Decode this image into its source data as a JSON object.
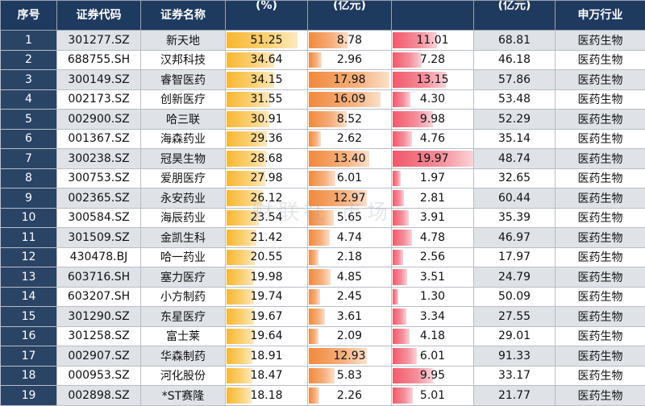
{
  "columns": [
    {
      "key": "seq",
      "label": "序号"
    },
    {
      "key": "code",
      "label": "证券代码"
    },
    {
      "key": "name",
      "label": "证券名称"
    },
    {
      "key": "pct",
      "label": "(%)"
    },
    {
      "key": "amount",
      "label": "(亿元)"
    },
    {
      "key": "amp",
      "label": ""
    },
    {
      "key": "cap",
      "label": "(亿元)"
    },
    {
      "key": "industry",
      "label": "申万行业"
    }
  ],
  "bar_colors": {
    "pct": "#f7b733",
    "amount": "#f08a3c",
    "amp": "#ef5a6b"
  },
  "bar_max": {
    "pct": 51.25,
    "amount": 17.98,
    "amp": 19.97
  },
  "watermark": "财联社 市场",
  "rows": [
    {
      "seq": "1",
      "code": "301277.SZ",
      "name": "新天地",
      "pct": "51.25",
      "amount": "8.78",
      "amp": "11.01",
      "cap": "68.81",
      "industry": "医药生物"
    },
    {
      "seq": "2",
      "code": "688755.SH",
      "name": "汉邦科技",
      "pct": "34.64",
      "amount": "2.96",
      "amp": "7.28",
      "cap": "46.18",
      "industry": "医药生物"
    },
    {
      "seq": "3",
      "code": "300149.SZ",
      "name": "睿智医药",
      "pct": "34.15",
      "amount": "17.98",
      "amp": "13.15",
      "cap": "57.86",
      "industry": "医药生物"
    },
    {
      "seq": "4",
      "code": "002173.SZ",
      "name": "创新医疗",
      "pct": "31.55",
      "amount": "16.09",
      "amp": "4.30",
      "cap": "53.48",
      "industry": "医药生物"
    },
    {
      "seq": "5",
      "code": "002900.SZ",
      "name": "哈三联",
      "pct": "30.91",
      "amount": "8.52",
      "amp": "9.98",
      "cap": "52.29",
      "industry": "医药生物"
    },
    {
      "seq": "6",
      "code": "001367.SZ",
      "name": "海森药业",
      "pct": "29.36",
      "amount": "2.62",
      "amp": "4.76",
      "cap": "35.14",
      "industry": "医药生物"
    },
    {
      "seq": "7",
      "code": "300238.SZ",
      "name": "冠昊生物",
      "pct": "28.68",
      "amount": "13.40",
      "amp": "19.97",
      "cap": "48.74",
      "industry": "医药生物"
    },
    {
      "seq": "8",
      "code": "300753.SZ",
      "name": "爱朋医疗",
      "pct": "27.98",
      "amount": "6.01",
      "amp": "1.97",
      "cap": "32.65",
      "industry": "医药生物"
    },
    {
      "seq": "9",
      "code": "002365.SZ",
      "name": "永安药业",
      "pct": "26.12",
      "amount": "12.97",
      "amp": "2.81",
      "cap": "60.44",
      "industry": "医药生物"
    },
    {
      "seq": "10",
      "code": "300584.SZ",
      "name": "海辰药业",
      "pct": "23.54",
      "amount": "5.65",
      "amp": "3.91",
      "cap": "35.39",
      "industry": "医药生物"
    },
    {
      "seq": "11",
      "code": "301509.SZ",
      "name": "金凯生科",
      "pct": "21.42",
      "amount": "4.74",
      "amp": "4.78",
      "cap": "46.97",
      "industry": "医药生物"
    },
    {
      "seq": "12",
      "code": "430478.BJ",
      "name": "哈一药业",
      "pct": "20.55",
      "amount": "2.18",
      "amp": "2.56",
      "cap": "17.97",
      "industry": "医药生物"
    },
    {
      "seq": "13",
      "code": "603716.SH",
      "name": "塞力医疗",
      "pct": "19.98",
      "amount": "4.85",
      "amp": "3.51",
      "cap": "24.79",
      "industry": "医药生物"
    },
    {
      "seq": "14",
      "code": "603207.SH",
      "name": "小方制药",
      "pct": "19.74",
      "amount": "2.45",
      "amp": "1.30",
      "cap": "50.09",
      "industry": "医药生物"
    },
    {
      "seq": "15",
      "code": "301290.SZ",
      "name": "东星医疗",
      "pct": "19.67",
      "amount": "3.61",
      "amp": "3.34",
      "cap": "27.55",
      "industry": "医药生物"
    },
    {
      "seq": "16",
      "code": "301258.SZ",
      "name": "富士莱",
      "pct": "19.64",
      "amount": "2.09",
      "amp": "4.18",
      "cap": "29.01",
      "industry": "医药生物"
    },
    {
      "seq": "17",
      "code": "002907.SZ",
      "name": "华森制药",
      "pct": "18.91",
      "amount": "12.93",
      "amp": "6.01",
      "cap": "91.33",
      "industry": "医药生物"
    },
    {
      "seq": "18",
      "code": "000953.SZ",
      "name": "河化股份",
      "pct": "18.47",
      "amount": "5.83",
      "amp": "9.95",
      "cap": "33.17",
      "industry": "医药生物"
    },
    {
      "seq": "19",
      "code": "002898.SZ",
      "name": "*ST赛隆",
      "pct": "18.18",
      "amount": "2.26",
      "amp": "5.01",
      "cap": "21.77",
      "industry": "医药生物"
    }
  ]
}
